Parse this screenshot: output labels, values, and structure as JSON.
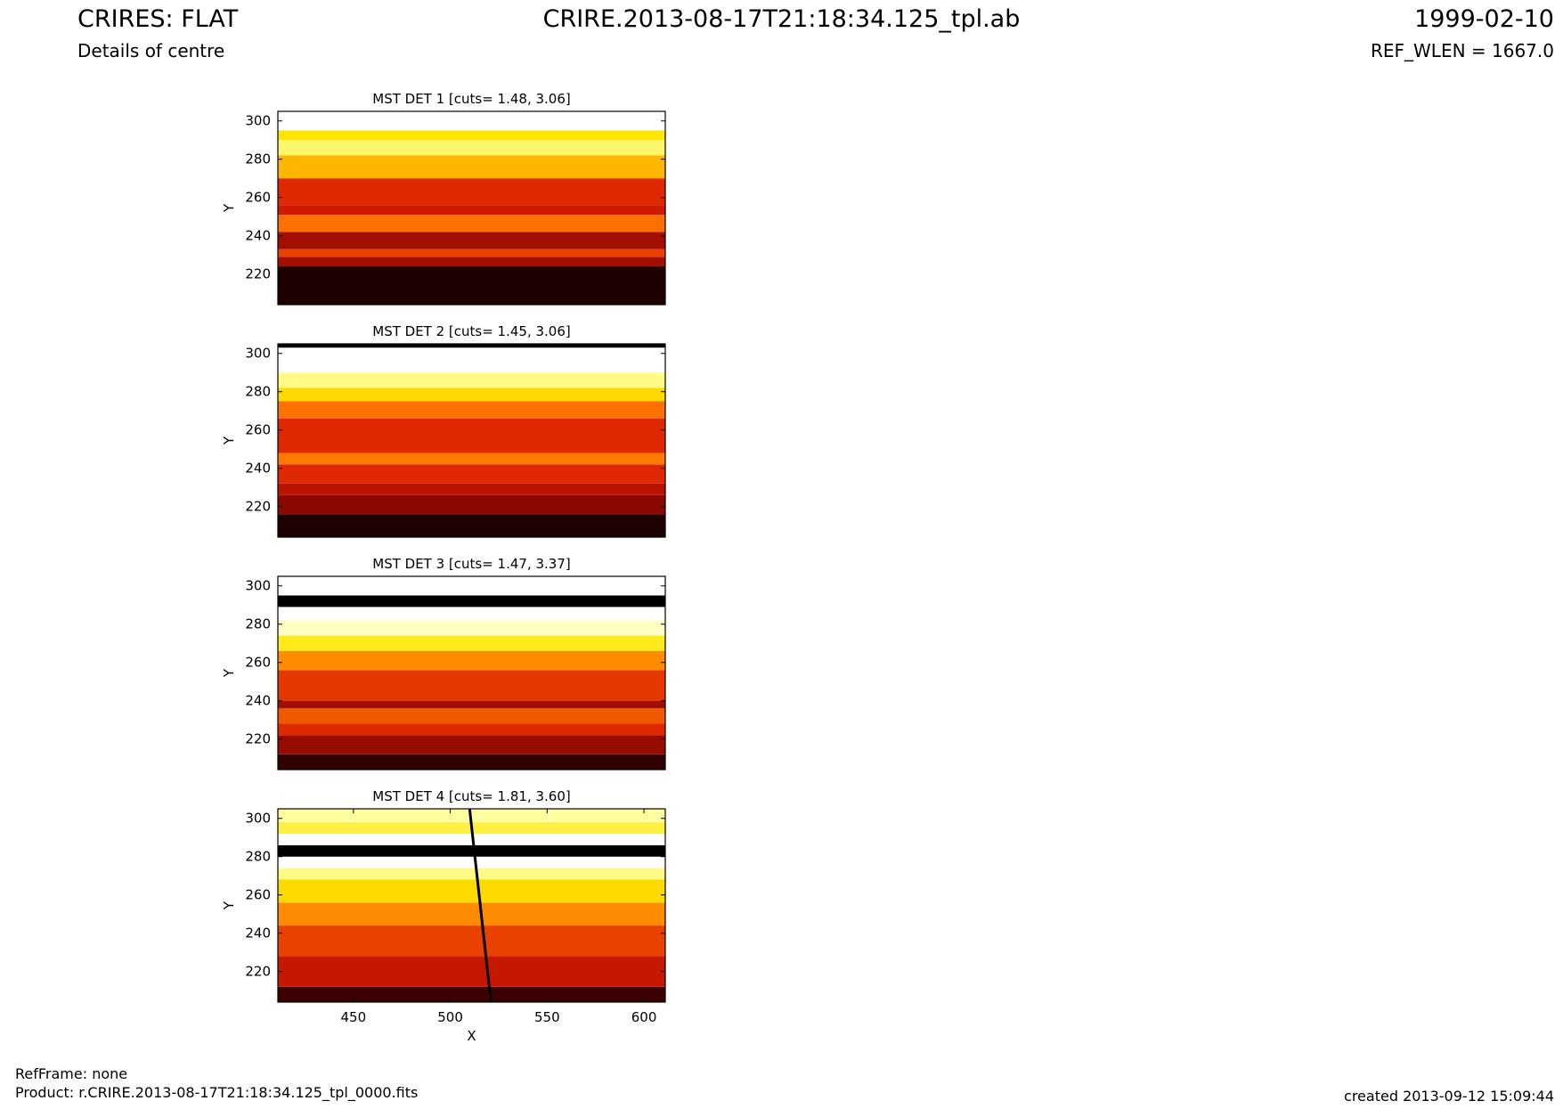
{
  "header": {
    "title": "CRIRES: FLAT",
    "subtitle": "Details of centre",
    "file": "CRIRE.2013-08-17T21:18:34.125_tpl.ab",
    "date": "1999-02-10",
    "ref_wlen": "REF_WLEN = 1667.0"
  },
  "footer": {
    "refframe": "RefFrame: none",
    "product": "Product: r.CRIRE.2013-08-17T21:18:34.125_tpl_0000.fits",
    "created": "created 2013-09-12 15:09:44"
  },
  "colors": {
    "black": "#000000",
    "dark": "#6b0000",
    "red": "#d81b00",
    "orange": "#ff7a00",
    "yellow": "#ffe600",
    "pale": "#ffffa0",
    "white": "#ffffff"
  },
  "chart_data": [
    {
      "type": "heatmap",
      "title": "MST DET 1 [cuts= 1.48, 3.06]",
      "xlabel": "",
      "ylabel": "Y",
      "xlim": [
        411,
        611
      ],
      "ylim": [
        204,
        305
      ],
      "xticks": [],
      "yticks": [
        220,
        240,
        260,
        280,
        300
      ],
      "cuts": [
        1.48,
        3.06
      ],
      "colormap": "hot",
      "bands": [
        {
          "y": [
            204,
            224
          ],
          "level": 0.05
        },
        {
          "y": [
            224,
            229
          ],
          "level": 0.3
        },
        {
          "y": [
            229,
            233
          ],
          "level": 0.5
        },
        {
          "y": [
            233,
            242
          ],
          "level": 0.3
        },
        {
          "y": [
            242,
            251
          ],
          "level": 0.6
        },
        {
          "y": [
            251,
            256
          ],
          "level": 0.4
        },
        {
          "y": [
            256,
            270
          ],
          "level": 0.45
        },
        {
          "y": [
            270,
            282
          ],
          "level": 0.72
        },
        {
          "y": [
            282,
            290
          ],
          "level": 0.88
        },
        {
          "y": [
            290,
            295
          ],
          "level": 0.8
        },
        {
          "y": [
            295,
            305
          ],
          "level": 1.0
        }
      ],
      "lines": []
    },
    {
      "type": "heatmap",
      "title": "MST DET 2 [cuts= 1.45, 3.06]",
      "xlabel": "",
      "ylabel": "Y",
      "xlim": [
        411,
        611
      ],
      "ylim": [
        204,
        305
      ],
      "xticks": [],
      "yticks": [
        220,
        240,
        260,
        280,
        300
      ],
      "cuts": [
        1.45,
        3.06
      ],
      "colormap": "hot",
      "bands": [
        {
          "y": [
            204,
            216
          ],
          "level": 0.05
        },
        {
          "y": [
            216,
            226
          ],
          "level": 0.25
        },
        {
          "y": [
            226,
            232
          ],
          "level": 0.35
        },
        {
          "y": [
            232,
            242
          ],
          "level": 0.45
        },
        {
          "y": [
            242,
            248
          ],
          "level": 0.62
        },
        {
          "y": [
            248,
            266
          ],
          "level": 0.45
        },
        {
          "y": [
            266,
            275
          ],
          "level": 0.6
        },
        {
          "y": [
            275,
            282
          ],
          "level": 0.78
        },
        {
          "y": [
            282,
            290
          ],
          "level": 0.9
        },
        {
          "y": [
            290,
            303
          ],
          "level": 1.0
        },
        {
          "y": [
            303,
            305
          ],
          "level": 0.0
        }
      ],
      "lines": []
    },
    {
      "type": "heatmap",
      "title": "MST DET 3 [cuts= 1.47, 3.37]",
      "xlabel": "",
      "ylabel": "Y",
      "xlim": [
        411,
        611
      ],
      "ylim": [
        204,
        305
      ],
      "xticks": [],
      "yticks": [
        220,
        240,
        260,
        280,
        300
      ],
      "cuts": [
        1.47,
        3.37
      ],
      "colormap": "hot",
      "bands": [
        {
          "y": [
            204,
            212
          ],
          "level": 0.08
        },
        {
          "y": [
            212,
            222
          ],
          "level": 0.28
        },
        {
          "y": [
            222,
            228
          ],
          "level": 0.45
        },
        {
          "y": [
            228,
            236
          ],
          "level": 0.55
        },
        {
          "y": [
            236,
            240
          ],
          "level": 0.3
        },
        {
          "y": [
            240,
            256
          ],
          "level": 0.48
        },
        {
          "y": [
            256,
            266
          ],
          "level": 0.65
        },
        {
          "y": [
            266,
            274
          ],
          "level": 0.82
        },
        {
          "y": [
            274,
            282
          ],
          "level": 0.95
        },
        {
          "y": [
            282,
            289
          ],
          "level": 1.0
        },
        {
          "y": [
            289,
            295
          ],
          "level": 0.0
        },
        {
          "y": [
            295,
            305
          ],
          "level": 1.0
        }
      ],
      "lines": []
    },
    {
      "type": "heatmap",
      "title": "MST DET 4 [cuts= 1.81, 3.60]",
      "xlabel": "X",
      "ylabel": "Y",
      "xlim": [
        411,
        611
      ],
      "ylim": [
        204,
        305
      ],
      "xticks": [
        450,
        500,
        550,
        600
      ],
      "yticks": [
        220,
        240,
        260,
        280,
        300
      ],
      "cuts": [
        1.81,
        3.6
      ],
      "colormap": "hot",
      "bands": [
        {
          "y": [
            204,
            212
          ],
          "level": 0.1
        },
        {
          "y": [
            212,
            228
          ],
          "level": 0.38
        },
        {
          "y": [
            228,
            244
          ],
          "level": 0.5
        },
        {
          "y": [
            244,
            256
          ],
          "level": 0.65
        },
        {
          "y": [
            256,
            268
          ],
          "level": 0.78
        },
        {
          "y": [
            268,
            274
          ],
          "level": 0.9
        },
        {
          "y": [
            274,
            280
          ],
          "level": 1.0
        },
        {
          "y": [
            280,
            286
          ],
          "level": 0.0
        },
        {
          "y": [
            286,
            292
          ],
          "level": 1.0
        },
        {
          "y": [
            292,
            298
          ],
          "level": 0.85
        },
        {
          "y": [
            298,
            305
          ],
          "level": 0.92
        }
      ],
      "lines": [
        {
          "x": [
            510,
            521
          ],
          "y": [
            305,
            204
          ],
          "color": "#000000"
        }
      ]
    }
  ]
}
